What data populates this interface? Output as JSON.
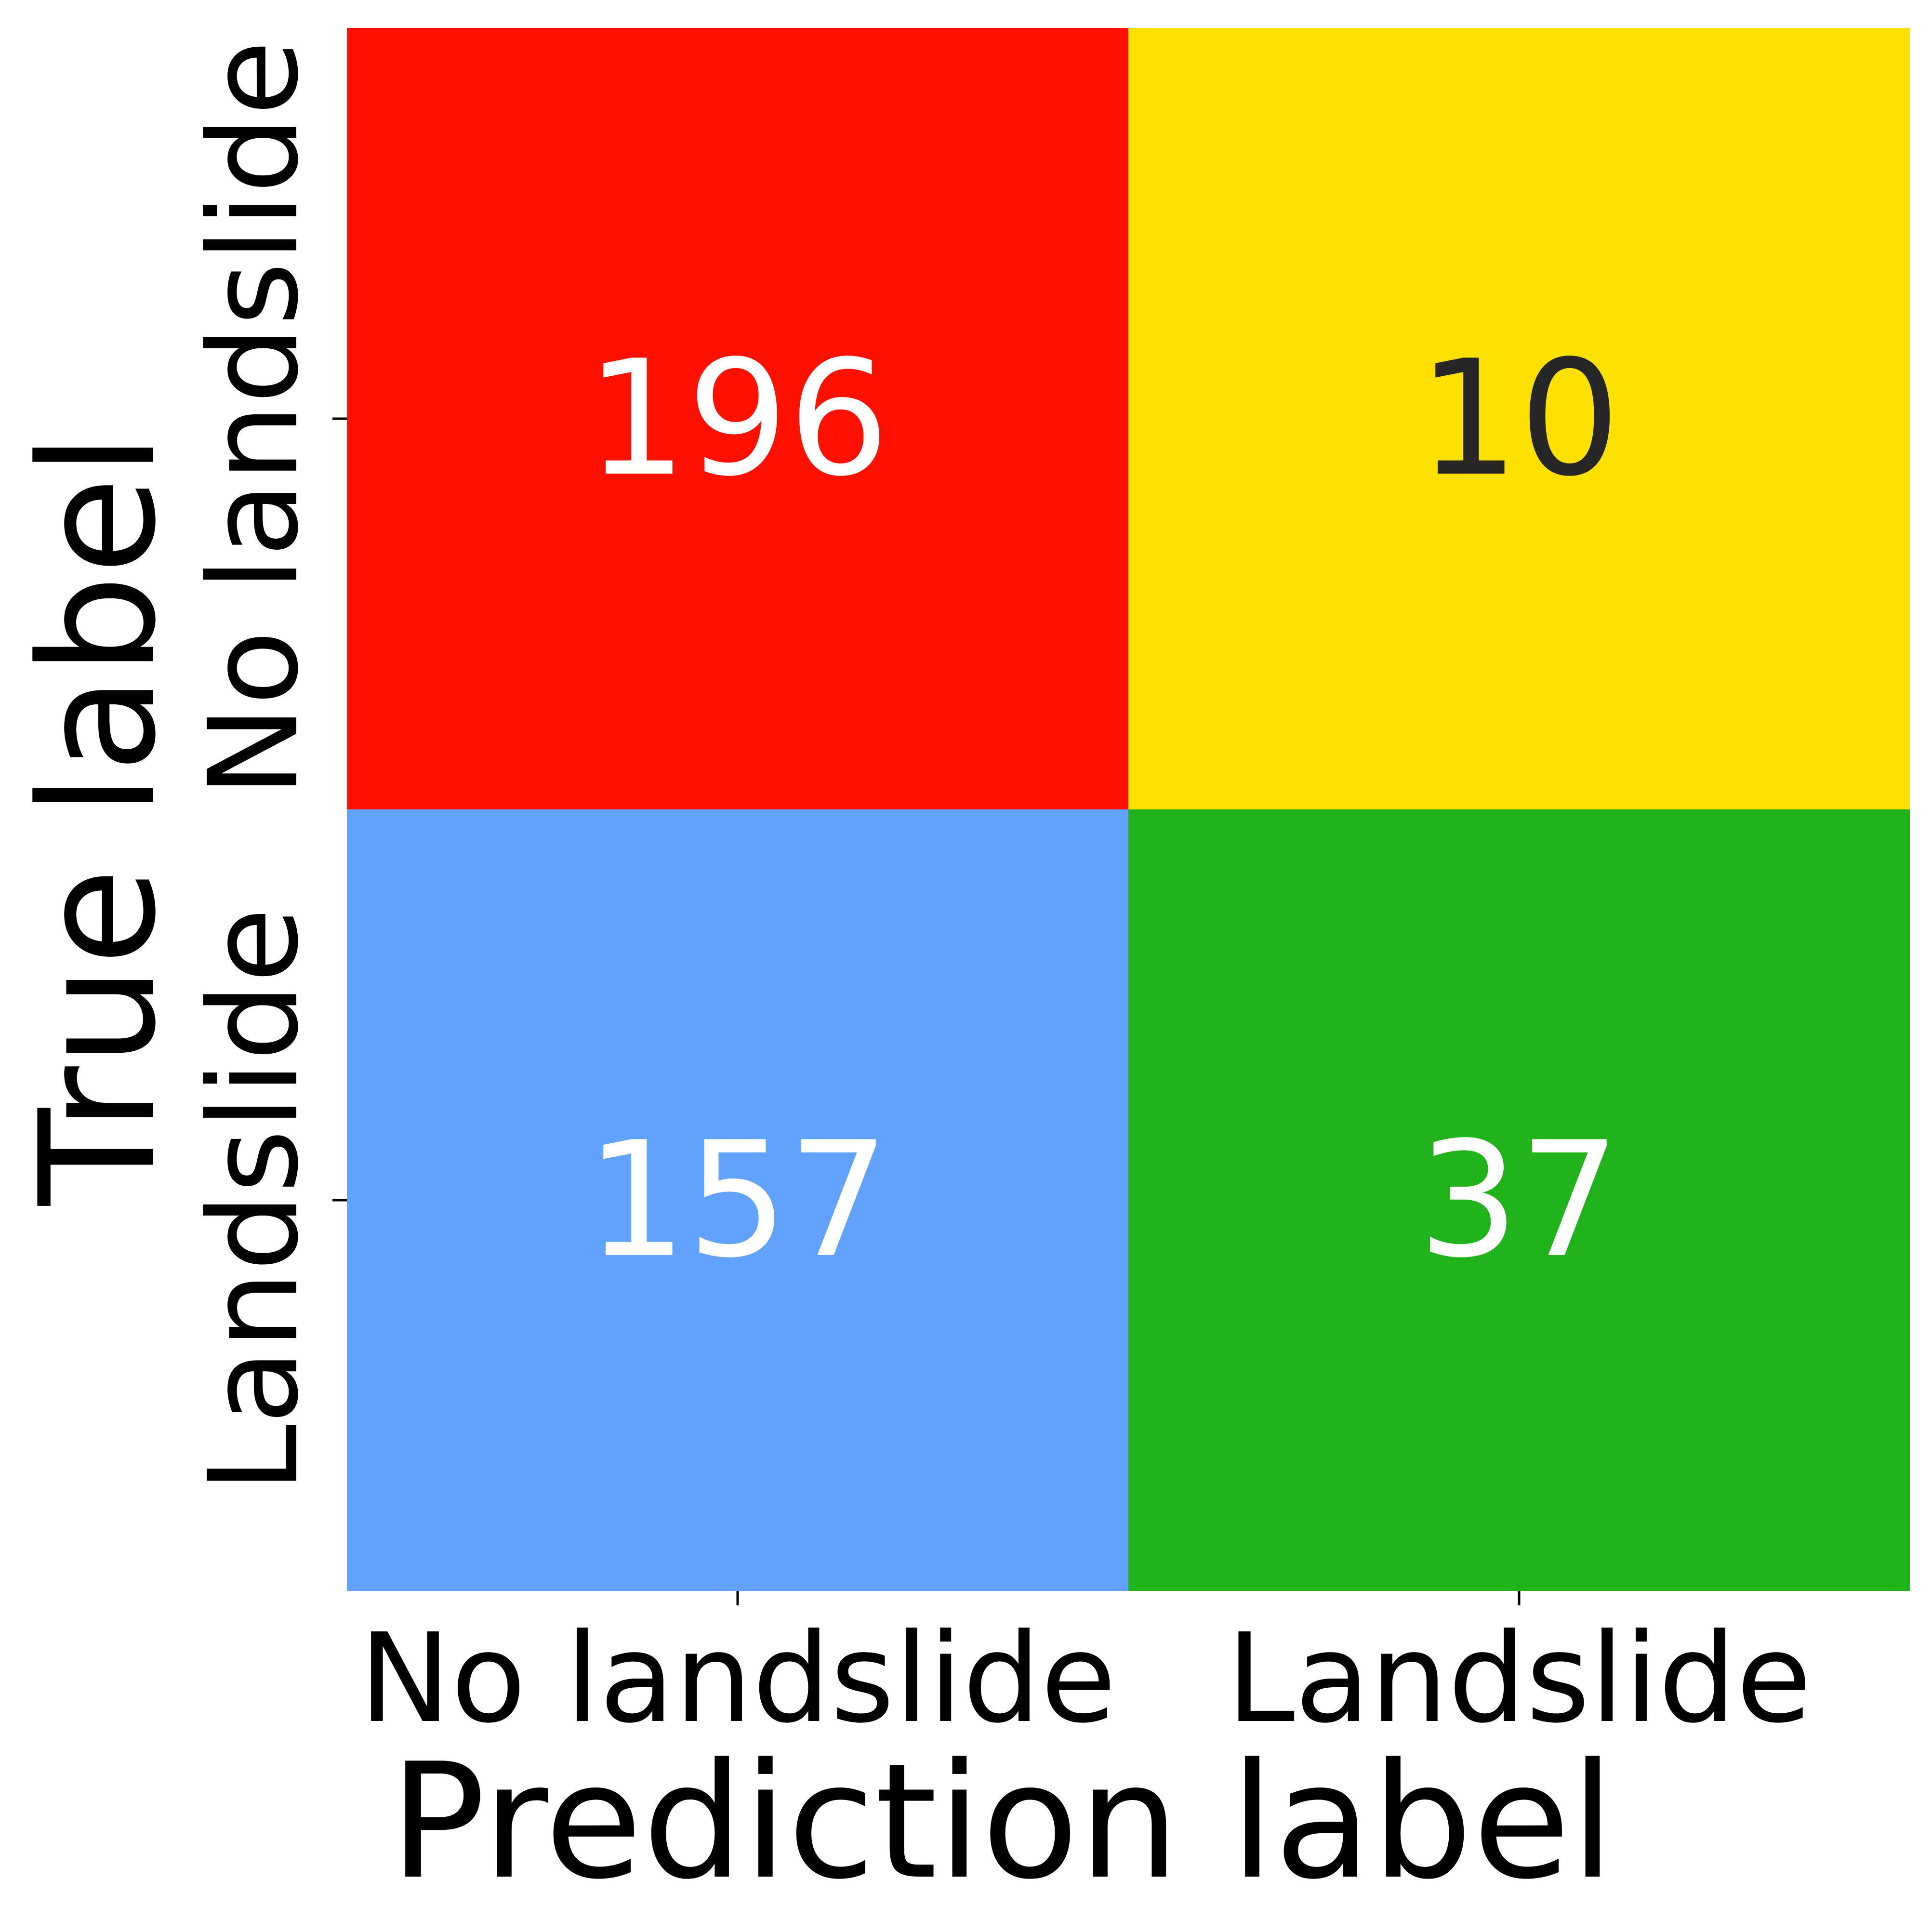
{
  "chart_data": {
    "type": "heatmap",
    "title": "",
    "xlabel": "Prediction label",
    "ylabel": "True label",
    "x_categories": [
      "No landslide",
      "Landslide"
    ],
    "y_categories": [
      "No landslide",
      "Landslide"
    ],
    "values": [
      [
        196,
        10
      ],
      [
        157,
        37
      ]
    ],
    "cell_colors": [
      [
        "#ff1000",
        "#ffe100"
      ],
      [
        "#62a2ff",
        "#20b31b"
      ]
    ],
    "value_text_colors": [
      [
        "#ffffff",
        "#262626"
      ],
      [
        "#ffffff",
        "#ffffff"
      ]
    ],
    "colorbar": false,
    "grid": false
  }
}
